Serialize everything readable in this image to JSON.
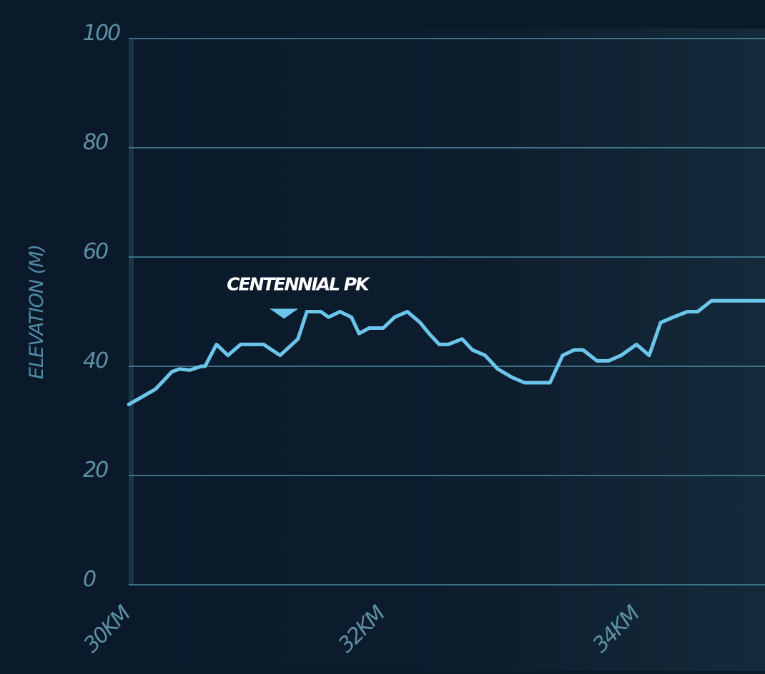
{
  "chart_data": {
    "type": "line",
    "ylabel": "ELEVATION (M)",
    "xlabel": "",
    "ylim": [
      0,
      100
    ],
    "xlim": [
      30.05,
      35.05
    ],
    "yticks": [
      {
        "value": 0,
        "label": "0"
      },
      {
        "value": 20,
        "label": "20"
      },
      {
        "value": 40,
        "label": "40"
      },
      {
        "value": 60,
        "label": "60"
      },
      {
        "value": 80,
        "label": "80"
      },
      {
        "value": 100,
        "label": "100"
      }
    ],
    "xticks": [
      {
        "value": 30,
        "label": "30KM"
      },
      {
        "value": 32,
        "label": "32KM"
      },
      {
        "value": 34,
        "label": "34KM"
      }
    ],
    "grid": true,
    "colors": {
      "line": "#6cc6ec",
      "grid": "#4d8ba2",
      "tick": "#5f8fa4",
      "annotation": "#ffffff"
    },
    "series": [
      {
        "x": [
          30.05,
          30.14,
          30.26,
          30.33,
          30.39,
          30.45,
          30.53,
          30.62,
          30.65,
          30.74,
          30.83,
          30.93,
          31.02,
          31.11,
          31.24,
          31.38,
          31.45,
          31.56,
          31.62,
          31.71,
          31.8,
          31.86,
          31.94,
          32.05,
          32.14,
          32.24,
          32.34,
          32.41,
          32.49,
          32.56,
          32.67,
          32.75,
          32.85,
          32.95,
          33.06,
          33.16,
          33.24,
          33.36,
          33.46,
          33.55,
          33.62,
          33.73,
          33.82,
          33.92,
          34.04,
          34.14,
          34.23,
          34.33,
          34.44,
          34.52,
          34.63,
          34.71,
          34.81,
          34.9,
          34.98,
          35.05
        ],
        "y": [
          33,
          34.2,
          35.8,
          37.5,
          39,
          39.5,
          39.3,
          40,
          40,
          44,
          42,
          44,
          44,
          44,
          42,
          45,
          50,
          50,
          49,
          50,
          49,
          46,
          47,
          47,
          49,
          50,
          48,
          46,
          44,
          44,
          45,
          43,
          42,
          39.5,
          38,
          37,
          37,
          37,
          42,
          43,
          43,
          41,
          41,
          42,
          44,
          42,
          48,
          49,
          50,
          50,
          52,
          52,
          52,
          52,
          52,
          52
        ]
      }
    ],
    "annotations": [
      {
        "label": "CENTENNIAL PK",
        "x": 31.27,
        "y": 49.5
      }
    ]
  }
}
